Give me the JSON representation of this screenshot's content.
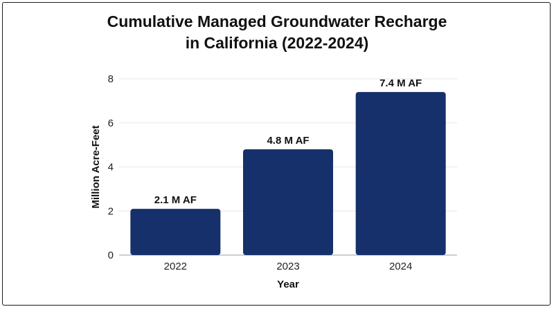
{
  "chart_data": {
    "type": "bar",
    "title_lines": [
      "Cumulative Managed Groundwater Recharge",
      "in California (2022-2024)"
    ],
    "categories": [
      "2022",
      "2023",
      "2024"
    ],
    "values": [
      2.1,
      4.8,
      7.4
    ],
    "data_labels": [
      "2.1 M AF",
      "4.8 M AF",
      "7.4 M AF"
    ],
    "xlabel": "Year",
    "ylabel": "Million Acre-Feet",
    "ylim": [
      0,
      8
    ],
    "yticks": [
      0,
      2,
      4,
      6,
      8
    ],
    "grid": true,
    "bar_color": "#16306b",
    "grid_color": "#e6e6e6",
    "axis_color": "#bdbdbd"
  }
}
